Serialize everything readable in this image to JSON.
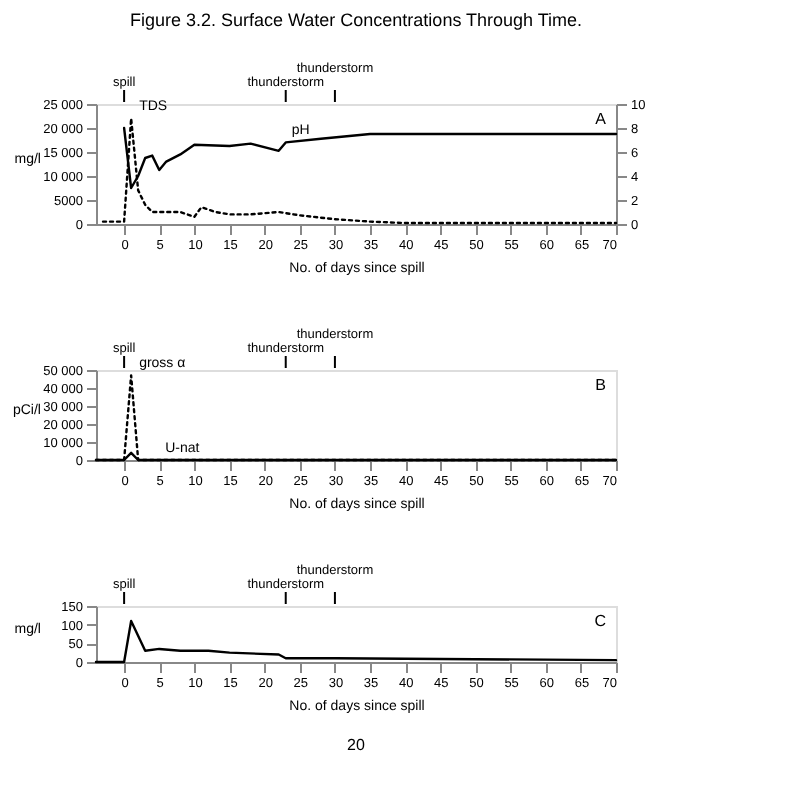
{
  "chart_data": [
    {
      "type": "line",
      "title": "Figure 3.2.   Surface Water Concentrations Through Time.",
      "xlabel": "No. of days since spill",
      "ylabel": "mg/l",
      "grid": false,
      "xlim": [
        -4,
        70
      ],
      "xticks": [
        0,
        5,
        10,
        15,
        20,
        25,
        30,
        35,
        40,
        45,
        50,
        55,
        60,
        65,
        70
      ],
      "ylim": [
        0,
        25000
      ],
      "yticks": [
        0,
        5000,
        {
          "value": 10000,
          "label": "10 000"
        },
        {
          "value": 15000,
          "label": "15 000"
        },
        {
          "value": 20000,
          "label": "20 000"
        },
        {
          "value": 25000,
          "label": "25 000"
        }
      ],
      "y2lim": [
        0,
        10
      ],
      "y2ticks": [
        0,
        2,
        4,
        6,
        8,
        10
      ],
      "series": [
        {
          "name": "TDS",
          "color": "#000000",
          "line_style": "dotted",
          "x": [
            -3,
            -1,
            0,
            1,
            2,
            3,
            4,
            6,
            8,
            10,
            11,
            13,
            15,
            18,
            22,
            25,
            30,
            35,
            40,
            50,
            60,
            70
          ],
          "values": [
            500,
            500,
            500,
            22000,
            7000,
            4000,
            2500,
            2500,
            2500,
            1500,
            3500,
            2500,
            2000,
            2000,
            2500,
            1800,
            1000,
            500,
            200,
            200,
            200,
            200
          ]
        },
        {
          "name": "pH",
          "color": "#000000",
          "line_style": "solid",
          "axis": "y2",
          "x": [
            0,
            1,
            2,
            3,
            4,
            5,
            6,
            8,
            10,
            15,
            18,
            22,
            23,
            28,
            35,
            70
          ],
          "values": [
            8,
            3,
            4,
            5.5,
            5.7,
            4.5,
            5.2,
            5.8,
            6.6,
            6.5,
            6.7,
            6.1,
            6.8,
            7.1,
            7.5,
            7.5
          ]
        }
      ],
      "ref_lines": [
        {
          "axis": "x",
          "value": 0,
          "label": "spill"
        },
        {
          "axis": "x",
          "value": 23,
          "label": "thunderstorm"
        },
        {
          "axis": "x",
          "value": 30,
          "label": "thunderstorm"
        }
      ],
      "annotations": [
        "A"
      ]
    },
    {
      "type": "line",
      "xlabel": "No. of days since spill",
      "ylabel": "pCi/l",
      "grid": false,
      "xlim": [
        -4,
        70
      ],
      "xticks": [
        0,
        5,
        10,
        15,
        20,
        25,
        30,
        35,
        40,
        45,
        50,
        55,
        60,
        65,
        70
      ],
      "ylim": [
        0,
        50000
      ],
      "yticks": [
        0,
        {
          "value": 10000,
          "label": "10 000"
        },
        {
          "value": 20000,
          "label": "20 000"
        },
        {
          "value": 30000,
          "label": "30 000"
        },
        {
          "value": 40000,
          "label": "40 000"
        },
        {
          "value": 50000,
          "label": "50 000"
        }
      ],
      "series": [
        {
          "name": "gross α",
          "color": "#000000",
          "line_style": "dotted",
          "x": [
            -4,
            0,
            1,
            2,
            5,
            70
          ],
          "values": [
            0,
            0,
            47000,
            0,
            0,
            0
          ]
        },
        {
          "name": "U-nat",
          "color": "#000000",
          "line_style": "solid",
          "x": [
            -4,
            0,
            1,
            2,
            5,
            70
          ],
          "values": [
            0,
            0,
            4000,
            0,
            0,
            0
          ]
        }
      ],
      "ref_lines": [
        {
          "axis": "x",
          "value": 0,
          "label": "spill"
        },
        {
          "axis": "x",
          "value": 23,
          "label": "thunderstorm"
        },
        {
          "axis": "x",
          "value": 30,
          "label": "thunderstorm"
        }
      ],
      "annotations": [
        "B"
      ]
    },
    {
      "type": "line",
      "xlabel": "No. of days since spill",
      "ylabel": "mg/l",
      "grid": false,
      "xlim": [
        -4,
        70
      ],
      "xticks": [
        0,
        5,
        10,
        15,
        20,
        25,
        30,
        35,
        40,
        45,
        50,
        55,
        60,
        65,
        70
      ],
      "ylim": [
        0,
        150
      ],
      "yticks": [
        0,
        50,
        100,
        150
      ],
      "series": [
        {
          "color": "#000000",
          "line_style": "solid",
          "x": [
            -4,
            0,
            1,
            3,
            5,
            8,
            12,
            15,
            22,
            23,
            30,
            70
          ],
          "values": [
            0,
            0,
            110,
            30,
            35,
            30,
            30,
            25,
            20,
            10,
            10,
            5
          ]
        }
      ],
      "ref_lines": [
        {
          "axis": "x",
          "value": 0,
          "label": "spill"
        },
        {
          "axis": "x",
          "value": 23,
          "label": "thunderstorm"
        },
        {
          "axis": "x",
          "value": 30,
          "label": "thunderstorm"
        }
      ],
      "annotations": [
        "C",
        "20"
      ]
    }
  ]
}
